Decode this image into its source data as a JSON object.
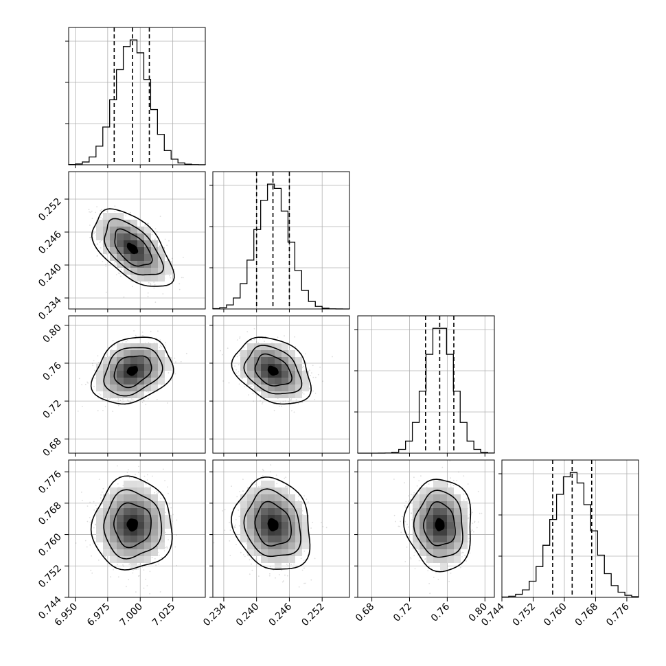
{
  "chart_data": {
    "type": "corner",
    "grid": true,
    "parameters": [
      {
        "index": 0,
        "range": [
          6.945,
          7.05
        ],
        "ticks": [
          6.95,
          6.975,
          7.0,
          7.025
        ],
        "tick_labels": [
          "6.950",
          "6.975",
          "7.000",
          "7.025"
        ],
        "quantiles": [
          6.98,
          6.994,
          7.007
        ],
        "peak": 6.994,
        "sd": 0.013
      },
      {
        "index": 1,
        "range": [
          0.232,
          0.257
        ],
        "ticks": [
          0.234,
          0.24,
          0.246,
          0.252
        ],
        "tick_labels": [
          "0.234",
          "0.240",
          "0.246",
          "0.252"
        ],
        "quantiles": [
          0.24,
          0.243,
          0.246
        ],
        "peak": 0.243,
        "sd": 0.003
      },
      {
        "index": 2,
        "range": [
          0.665,
          0.81
        ],
        "ticks": [
          0.68,
          0.72,
          0.76,
          0.8
        ],
        "tick_labels": [
          "0.68",
          "0.72",
          "0.76",
          "0.80"
        ],
        "quantiles": [
          0.737,
          0.752,
          0.767
        ],
        "peak": 0.752,
        "sd": 0.015
      },
      {
        "index": 3,
        "range": [
          0.744,
          0.779
        ],
        "ticks": [
          0.744,
          0.752,
          0.76,
          0.768,
          0.776
        ],
        "tick_labels": [
          "0.744",
          "0.752",
          "0.760",
          "0.768",
          "0.776"
        ],
        "quantiles": [
          0.757,
          0.762,
          0.767
        ],
        "peak": 0.762,
        "sd": 0.005
      }
    ],
    "pairs": [
      {
        "row": 1,
        "col": 0,
        "center": [
          6.994,
          0.243
        ],
        "corr": -0.55
      },
      {
        "row": 2,
        "col": 0,
        "center": [
          6.994,
          0.752
        ],
        "corr": 0.25
      },
      {
        "row": 2,
        "col": 1,
        "center": [
          0.243,
          0.752
        ],
        "corr": -0.3
      },
      {
        "row": 3,
        "col": 0,
        "center": [
          6.994,
          0.7625
        ],
        "corr": 0.0
      },
      {
        "row": 3,
        "col": 1,
        "center": [
          0.243,
          0.7625
        ],
        "corr": -0.15
      },
      {
        "row": 3,
        "col": 2,
        "center": [
          0.752,
          0.7625
        ],
        "corr": -0.05
      }
    ],
    "contour_levels": [
      0.3,
      1.1,
      1.7,
      2.35
    ]
  }
}
